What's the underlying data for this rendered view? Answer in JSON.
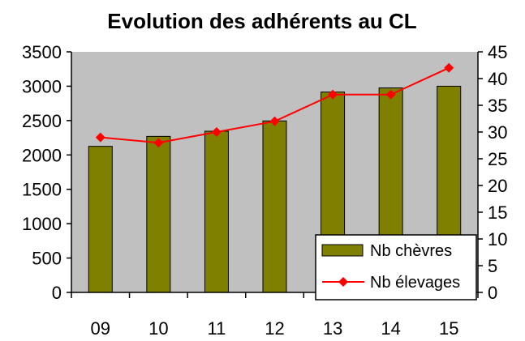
{
  "chart_data": {
    "type": "bar",
    "title": "Evolution des adhérents au CL",
    "xlabel": "",
    "ylabel": "",
    "categories": [
      "09",
      "10",
      "11",
      "12",
      "13",
      "14",
      "15"
    ],
    "series": [
      {
        "name": "Nb chèvres",
        "type": "bar",
        "axis": "left",
        "color": "#808000",
        "values": [
          2125,
          2270,
          2345,
          2495,
          2915,
          2975,
          3000
        ]
      },
      {
        "name": "Nb élevages",
        "type": "line",
        "axis": "right",
        "color": "#ff0000",
        "marker": "diamond",
        "values": [
          29,
          28,
          30,
          32,
          37,
          37,
          42
        ]
      }
    ],
    "ylim": [
      0,
      3500
    ],
    "yticks": [
      "0",
      "500",
      "1000",
      "1500",
      "2000",
      "2500",
      "3000",
      "3500"
    ],
    "y2lim": [
      0,
      45
    ],
    "y2ticks": [
      "0",
      "5",
      "10",
      "15",
      "20",
      "25",
      "30",
      "35",
      "40",
      "45"
    ],
    "plot_background": "#c0c0c0",
    "grid": false,
    "legend_position": "bottom-right"
  }
}
